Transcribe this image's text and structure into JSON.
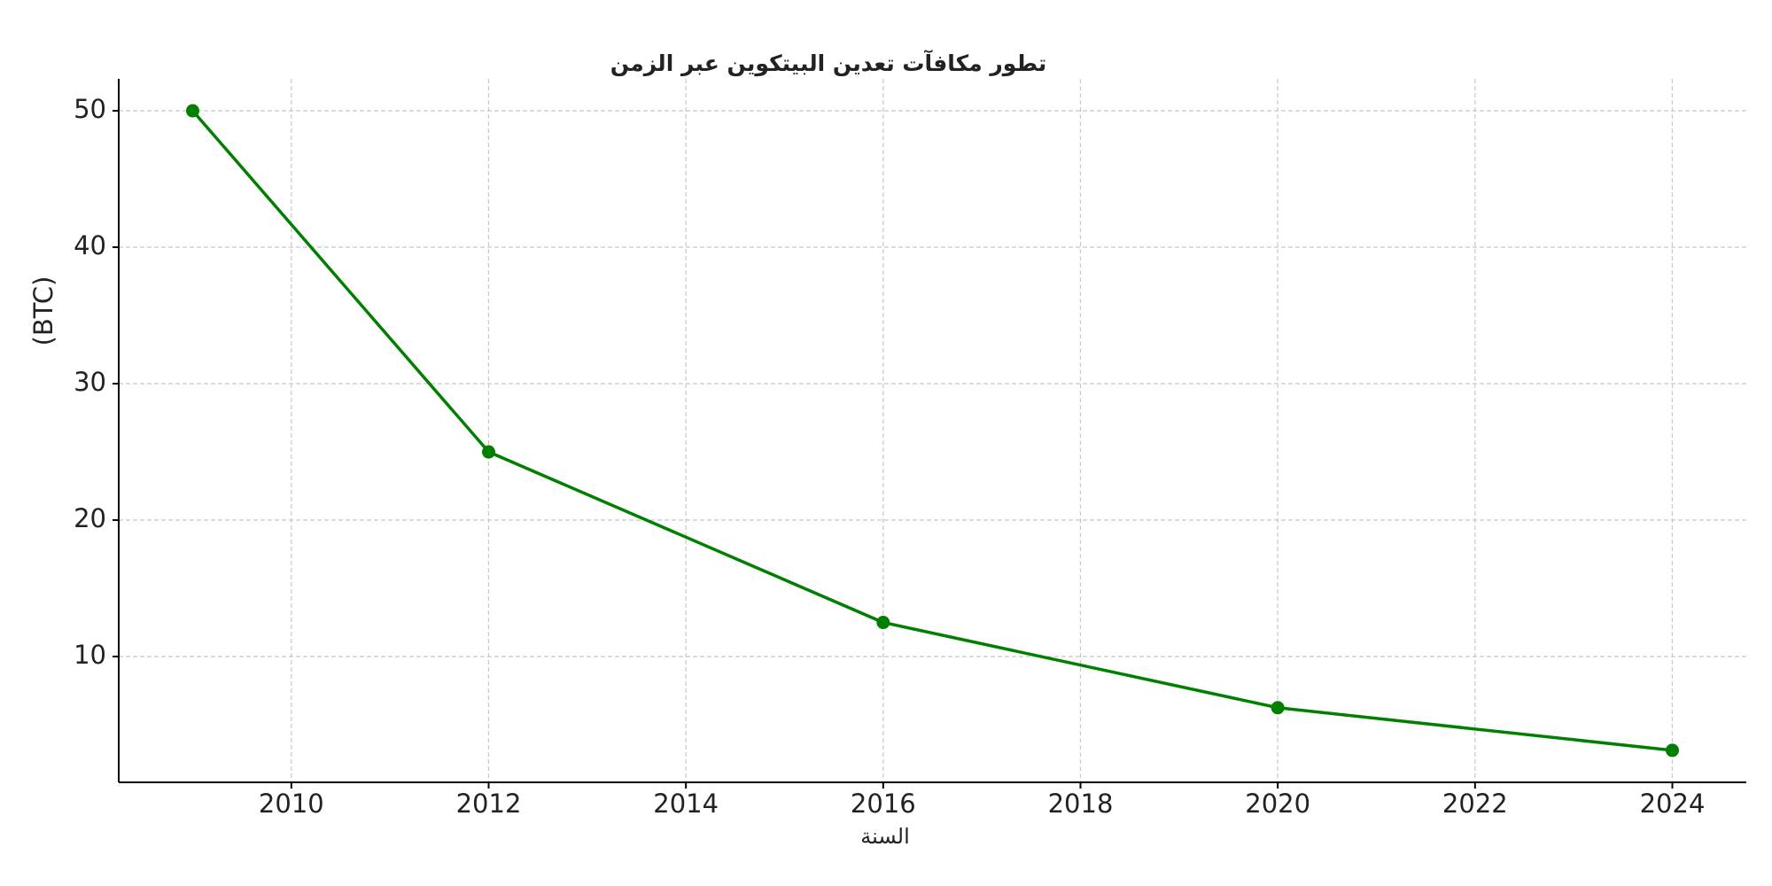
{
  "chart_data": {
    "type": "line",
    "title": "تطور مكافآت تعدين البيتكوين عبر الزمن",
    "x_label": "السنة",
    "y_label": "(BTC)",
    "x": [
      2009,
      2012,
      2016,
      2020,
      2024
    ],
    "series": [
      {
        "name": "BTC",
        "color": "#007f00",
        "values": [
          50,
          25,
          12.5,
          6.25,
          3.125
        ]
      }
    ],
    "xlim": [
      2008.25,
      2024.75
    ],
    "xticks": [
      2010,
      2012,
      2014,
      2016,
      2018,
      2020,
      2022,
      2024
    ],
    "ylim": [
      0.78,
      52.34
    ],
    "yticks": [
      10,
      20,
      30,
      40,
      50
    ],
    "grid": true
  }
}
